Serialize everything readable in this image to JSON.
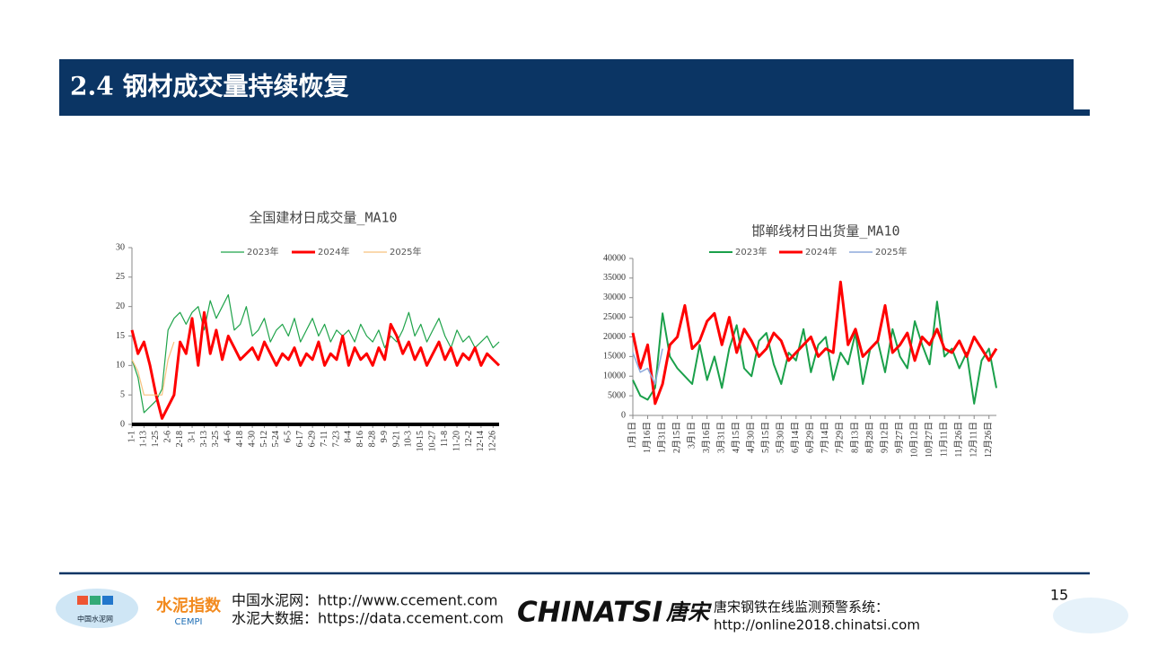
{
  "header": {
    "title": "2.4 钢材成交量持续恢复"
  },
  "chart_data": [
    {
      "type": "line",
      "title": "全国建材日成交量_MA10",
      "categories": [
        "1-1",
        null,
        "1-13",
        null,
        "1-25",
        null,
        "2-6",
        null,
        "2-18",
        null,
        "3-1",
        null,
        "3-13",
        null,
        "3-25",
        null,
        "4-6",
        null,
        "4-18",
        null,
        "4-30",
        null,
        "5-12",
        null,
        "5-24",
        null,
        "6-5",
        null,
        "6-17",
        null,
        "6-29",
        null,
        "7-11",
        null,
        "7-23",
        null,
        "8-4",
        null,
        "8-16",
        null,
        "8-28",
        null,
        "9-9",
        null,
        "9-21",
        null,
        "10-3",
        null,
        "10-15",
        null,
        "10-27",
        null,
        "11-8",
        null,
        "11-20",
        null,
        "12-2",
        null,
        "12-14",
        null,
        "12-26",
        null
      ],
      "series": [
        {
          "name": "2023年",
          "color": "#1fa34a",
          "values": [
            11,
            8,
            2,
            3,
            4,
            6,
            16,
            18,
            19,
            17,
            19,
            20,
            16,
            21,
            18,
            20,
            22,
            16,
            17,
            20,
            15,
            16,
            18,
            14,
            16,
            17,
            15,
            18,
            14,
            16,
            18,
            15,
            17,
            14,
            16,
            15,
            16,
            14,
            17,
            15,
            14,
            16,
            13,
            15,
            14,
            16,
            19,
            15,
            17,
            14,
            16,
            18,
            15,
            13,
            16,
            14,
            15,
            13,
            14,
            15,
            13,
            14
          ]
        },
        {
          "name": "2024年",
          "color": "#ff0000",
          "values": [
            16,
            12,
            14,
            10,
            5,
            1,
            3,
            5,
            14,
            12,
            18,
            10,
            19,
            12,
            16,
            11,
            15,
            13,
            11,
            12,
            13,
            11,
            14,
            12,
            10,
            12,
            11,
            13,
            10,
            12,
            11,
            14,
            10,
            12,
            11,
            15,
            10,
            13,
            11,
            12,
            10,
            13,
            11,
            17,
            15,
            12,
            14,
            11,
            13,
            10,
            12,
            14,
            11,
            13,
            10,
            12,
            11,
            13,
            10,
            12,
            11,
            10
          ]
        },
        {
          "name": "2025年",
          "color": "#f8c27e",
          "values": [
            11,
            9,
            5,
            5,
            5,
            5,
            11,
            14,
            null,
            null,
            null,
            null,
            null,
            null,
            null,
            null,
            null,
            null,
            null,
            null,
            null,
            null,
            null,
            null,
            null,
            null,
            null,
            null,
            null,
            null,
            null,
            null,
            null,
            null,
            null,
            null,
            null,
            null,
            null,
            null,
            null,
            null,
            null,
            null,
            null,
            null,
            null,
            null,
            null,
            null,
            null,
            null,
            null,
            null,
            null,
            null,
            null,
            null,
            null,
            null,
            null,
            null
          ]
        }
      ],
      "ylim": [
        0,
        30
      ],
      "yticks": [
        0,
        5,
        10,
        15,
        20,
        25,
        30
      ],
      "legend": "top"
    },
    {
      "type": "line",
      "title": "邯郸线材日出货量_MA10",
      "categories": [
        "1月1日",
        null,
        "1月16日",
        null,
        "1月31日",
        null,
        "2月15日",
        null,
        "3月1日",
        null,
        "3月16日",
        null,
        "3月31日",
        null,
        "4月15日",
        null,
        "4月30日",
        null,
        "5月15日",
        null,
        "5月30日",
        null,
        "6月14日",
        null,
        "6月29日",
        null,
        "7月14日",
        null,
        "7月29日",
        null,
        "8月13日",
        null,
        "8月28日",
        null,
        "9月12日",
        null,
        "9月27日",
        null,
        "10月12日",
        null,
        "10月27日",
        null,
        "11月11日",
        null,
        "11月26日",
        null,
        "12月11日",
        null,
        "12月26日",
        null
      ],
      "series": [
        {
          "name": "2023年",
          "color": "#1aa04a",
          "values": [
            9000,
            5000,
            4000,
            7000,
            26000,
            15000,
            12000,
            10000,
            8000,
            18000,
            9000,
            15000,
            7000,
            17000,
            23000,
            12000,
            10000,
            19000,
            21000,
            13000,
            8000,
            16000,
            14000,
            22000,
            11000,
            18000,
            20000,
            9000,
            16000,
            13000,
            21000,
            8000,
            17000,
            19000,
            11000,
            22000,
            15000,
            12000,
            24000,
            18000,
            13000,
            29000,
            15000,
            17000,
            12000,
            16000,
            3000,
            14000,
            17000,
            7000
          ]
        },
        {
          "name": "2024年",
          "color": "#ff0000",
          "values": [
            21000,
            12000,
            18000,
            3000,
            8000,
            18000,
            20000,
            28000,
            17000,
            19000,
            24000,
            26000,
            18000,
            25000,
            16000,
            22000,
            19000,
            15000,
            17000,
            21000,
            19000,
            14000,
            16000,
            18000,
            20000,
            15000,
            17000,
            16000,
            34000,
            18000,
            22000,
            15000,
            17000,
            19000,
            28000,
            16000,
            18000,
            21000,
            14000,
            20000,
            18000,
            22000,
            17000,
            16000,
            19000,
            15000,
            20000,
            17000,
            14000,
            17000
          ]
        },
        {
          "name": "2025年",
          "color": "#8eaadb",
          "values": [
            16000,
            11000,
            12000,
            8000,
            17000,
            null,
            null,
            null,
            null,
            null,
            null,
            null,
            null,
            null,
            null,
            null,
            null,
            null,
            null,
            null,
            null,
            null,
            null,
            null,
            null,
            null,
            null,
            null,
            null,
            null,
            null,
            null,
            null,
            null,
            null,
            null,
            null,
            null,
            null,
            null,
            null,
            null,
            null,
            null,
            null,
            null,
            null,
            null,
            null,
            null
          ]
        }
      ],
      "ylim": [
        0,
        40000
      ],
      "yticks": [
        0,
        5000,
        10000,
        15000,
        20000,
        25000,
        30000,
        35000,
        40000
      ],
      "legend": "top"
    }
  ],
  "footer": {
    "logo1": "中国水泥网",
    "logo2": "水泥指数",
    "logo2_sub": "CEMPI",
    "line1": "中国水泥网：http://www.ccement.com",
    "line2": "水泥大数据：https://data.ccement.com",
    "brand": "CHINATSI",
    "brand_cn": "唐宋",
    "line3": "唐宋钢铁在线监测预警系统：",
    "line4": "http://online2018.chinatsi.com",
    "page": "15"
  }
}
